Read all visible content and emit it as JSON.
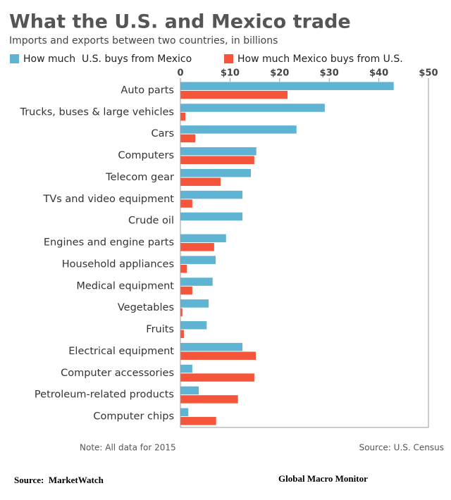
{
  "chart_data": {
    "type": "bar",
    "orientation": "horizontal",
    "title": "What the U.S. and Mexico trade",
    "subtitle": "Imports and exports between two countries, in billions",
    "note": "Note: All data for 2015",
    "source": "Source: U.S. Census",
    "categories": [
      "Auto parts",
      "Trucks, buses & large vehicles",
      "Cars",
      "Computers",
      "Telecom gear",
      "TVs and video equipment",
      "Crude oil",
      "Engines and engine parts",
      "Household appliances",
      "Medical equipment",
      "Vegetables",
      "Fruits",
      "Electrical equipment",
      "Computer accessories",
      "Petroleum-related products",
      "Computer chips"
    ],
    "series": [
      {
        "name": "How much  U.S. buys from Mexico",
        "color": "#5fb3d3",
        "values": [
          43.0,
          29.1,
          23.4,
          15.3,
          14.2,
          12.5,
          12.5,
          9.2,
          7.1,
          6.5,
          5.7,
          5.3,
          12.5,
          2.4,
          3.7,
          1.6
        ]
      },
      {
        "name": "How much Mexico buys from U.S.",
        "color": "#f4553b",
        "values": [
          21.6,
          1.0,
          3.0,
          14.9,
          8.1,
          2.4,
          0,
          6.8,
          1.3,
          2.4,
          0.4,
          0.7,
          15.2,
          14.9,
          11.6,
          7.2
        ]
      }
    ],
    "xlim": [
      0,
      50
    ],
    "xticks": [
      0,
      {
        "value": 10,
        "label": "$10"
      },
      {
        "value": 20,
        "label": "$20"
      },
      {
        "value": 30,
        "label": "$30"
      },
      {
        "value": 40,
        "label": "$40"
      },
      {
        "value": 50,
        "label": "$50"
      }
    ],
    "grid": false
  },
  "footer": {
    "source": "Source:  MarketWatch",
    "credit": "Global Macro Monitor"
  }
}
